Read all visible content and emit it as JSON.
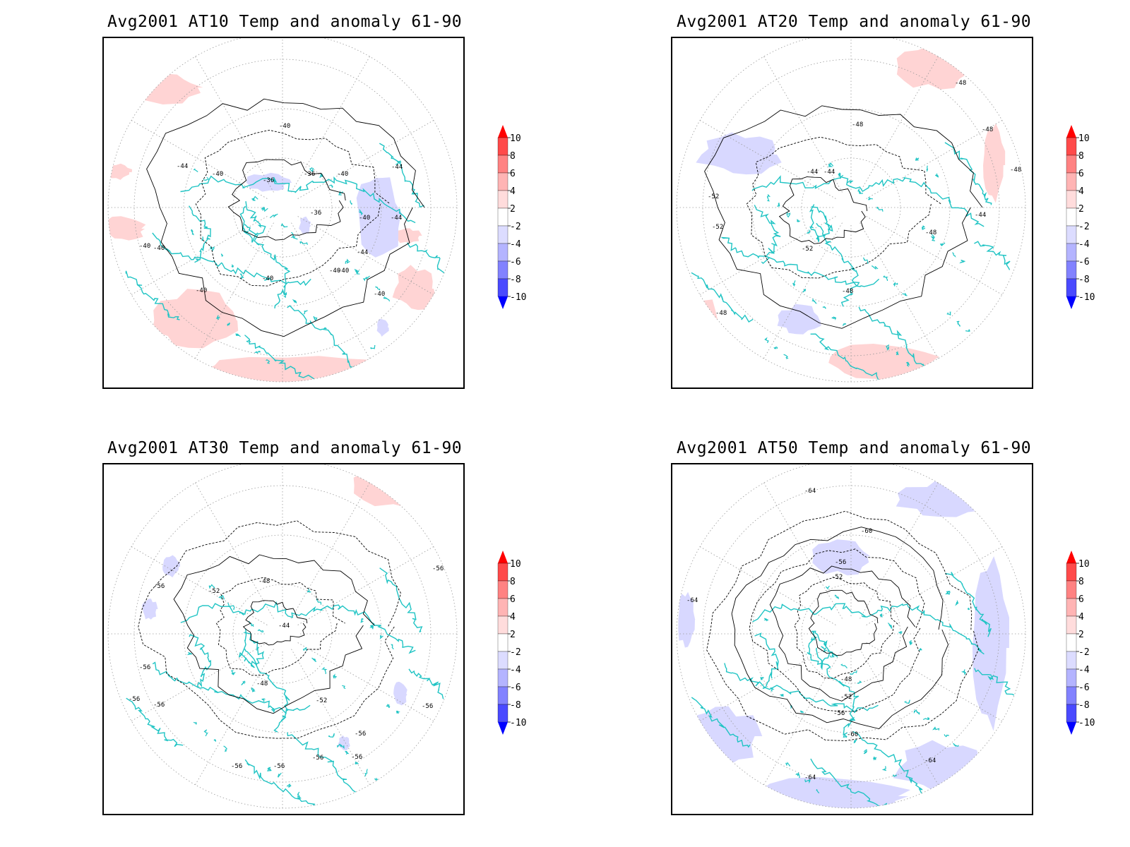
{
  "figure": {
    "panels": [
      {
        "id": "at10",
        "title": "Avg2001 AT10 Temp and anomaly 61-90",
        "contour_labels": [
          "-40",
          "-44",
          "-40",
          "-36",
          "-36",
          "-40",
          "-44",
          "-36",
          "-40",
          "-44",
          "-40",
          "-44",
          "-40",
          "-40",
          "-40",
          "-40",
          "-40",
          "-40"
        ]
      },
      {
        "id": "at20",
        "title": "Avg2001 AT20 Temp and anomaly 61-90",
        "contour_labels": [
          "-48",
          "-48",
          "-48",
          "-48",
          "-44",
          "-44",
          "-52",
          "-52",
          "-44",
          "-48",
          "-52",
          "-48",
          "-48"
        ]
      },
      {
        "id": "at30",
        "title": "Avg2001 AT30 Temp and anomaly 61-90",
        "contour_labels": [
          "-56",
          "-52",
          "-48",
          "-44",
          "-56",
          "-56",
          "-56",
          "-56",
          "-48",
          "-52",
          "-56",
          "-56",
          "-56",
          "-56",
          "-56",
          "-56"
        ]
      },
      {
        "id": "at50",
        "title": "Avg2001 AT50 Temp and anomaly 61-90",
        "contour_labels": [
          "-64",
          "-60",
          "-56",
          "-52",
          "-64",
          "-48",
          "-52",
          "-56",
          "-60",
          "-64",
          "-64"
        ]
      }
    ],
    "colorbar": {
      "levels": [
        "10",
        "8",
        "6",
        "4",
        "2",
        "-2",
        "-4",
        "-6",
        "-8",
        "-10"
      ],
      "colors": [
        "#ff0000",
        "#ff4a4a",
        "#ff8282",
        "#ffb4b4",
        "#ffdcdc",
        "#ffffff",
        "#dcdcff",
        "#b4b4ff",
        "#8282ff",
        "#4a4aff",
        "#0000ff"
      ]
    },
    "colors": {
      "coastline": "#20c4c4",
      "warm_anomaly": "#ffd4d4",
      "cold_anomaly": "#d8d8ff",
      "contour": "#000000",
      "grid": "#9a9a9a"
    }
  }
}
